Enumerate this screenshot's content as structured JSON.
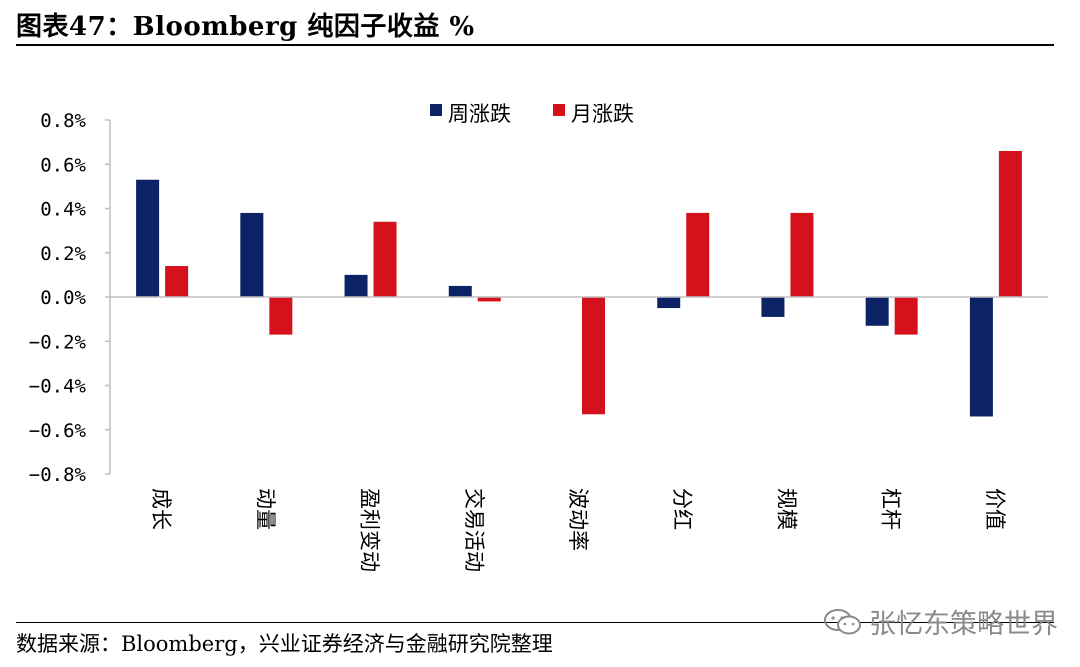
{
  "title": "图表47：Bloomberg 纯因子收益 %",
  "source": "数据来源：Bloomberg，兴业证券经济与金融研究院整理",
  "watermark": "张忆东策略世界",
  "colors": {
    "weekly": "#0b2265",
    "monthly": "#d5121b",
    "axis": "#bfbfbf"
  },
  "chart_data": {
    "type": "bar",
    "categories": [
      "成长",
      "动量",
      "盈利变动",
      "交易活动",
      "波动率",
      "分红",
      "规模",
      "杠杆",
      "价值"
    ],
    "series": [
      {
        "name": "周涨跌",
        "values": [
          0.53,
          0.38,
          0.1,
          0.05,
          0.0,
          -0.05,
          -0.09,
          -0.13,
          -0.54
        ]
      },
      {
        "name": "月涨跌",
        "values": [
          0.14,
          -0.17,
          0.34,
          -0.02,
          -0.53,
          0.38,
          0.38,
          -0.17,
          0.66
        ]
      }
    ],
    "yticks": [
      "0.8%",
      "0.6%",
      "0.4%",
      "0.2%",
      "0.0%",
      "−0.2%",
      "−0.4%",
      "−0.6%",
      "−0.8%"
    ],
    "ylim": [
      -0.8,
      0.8
    ],
    "unit": "%",
    "legend_position": "top-center",
    "grid": false
  }
}
